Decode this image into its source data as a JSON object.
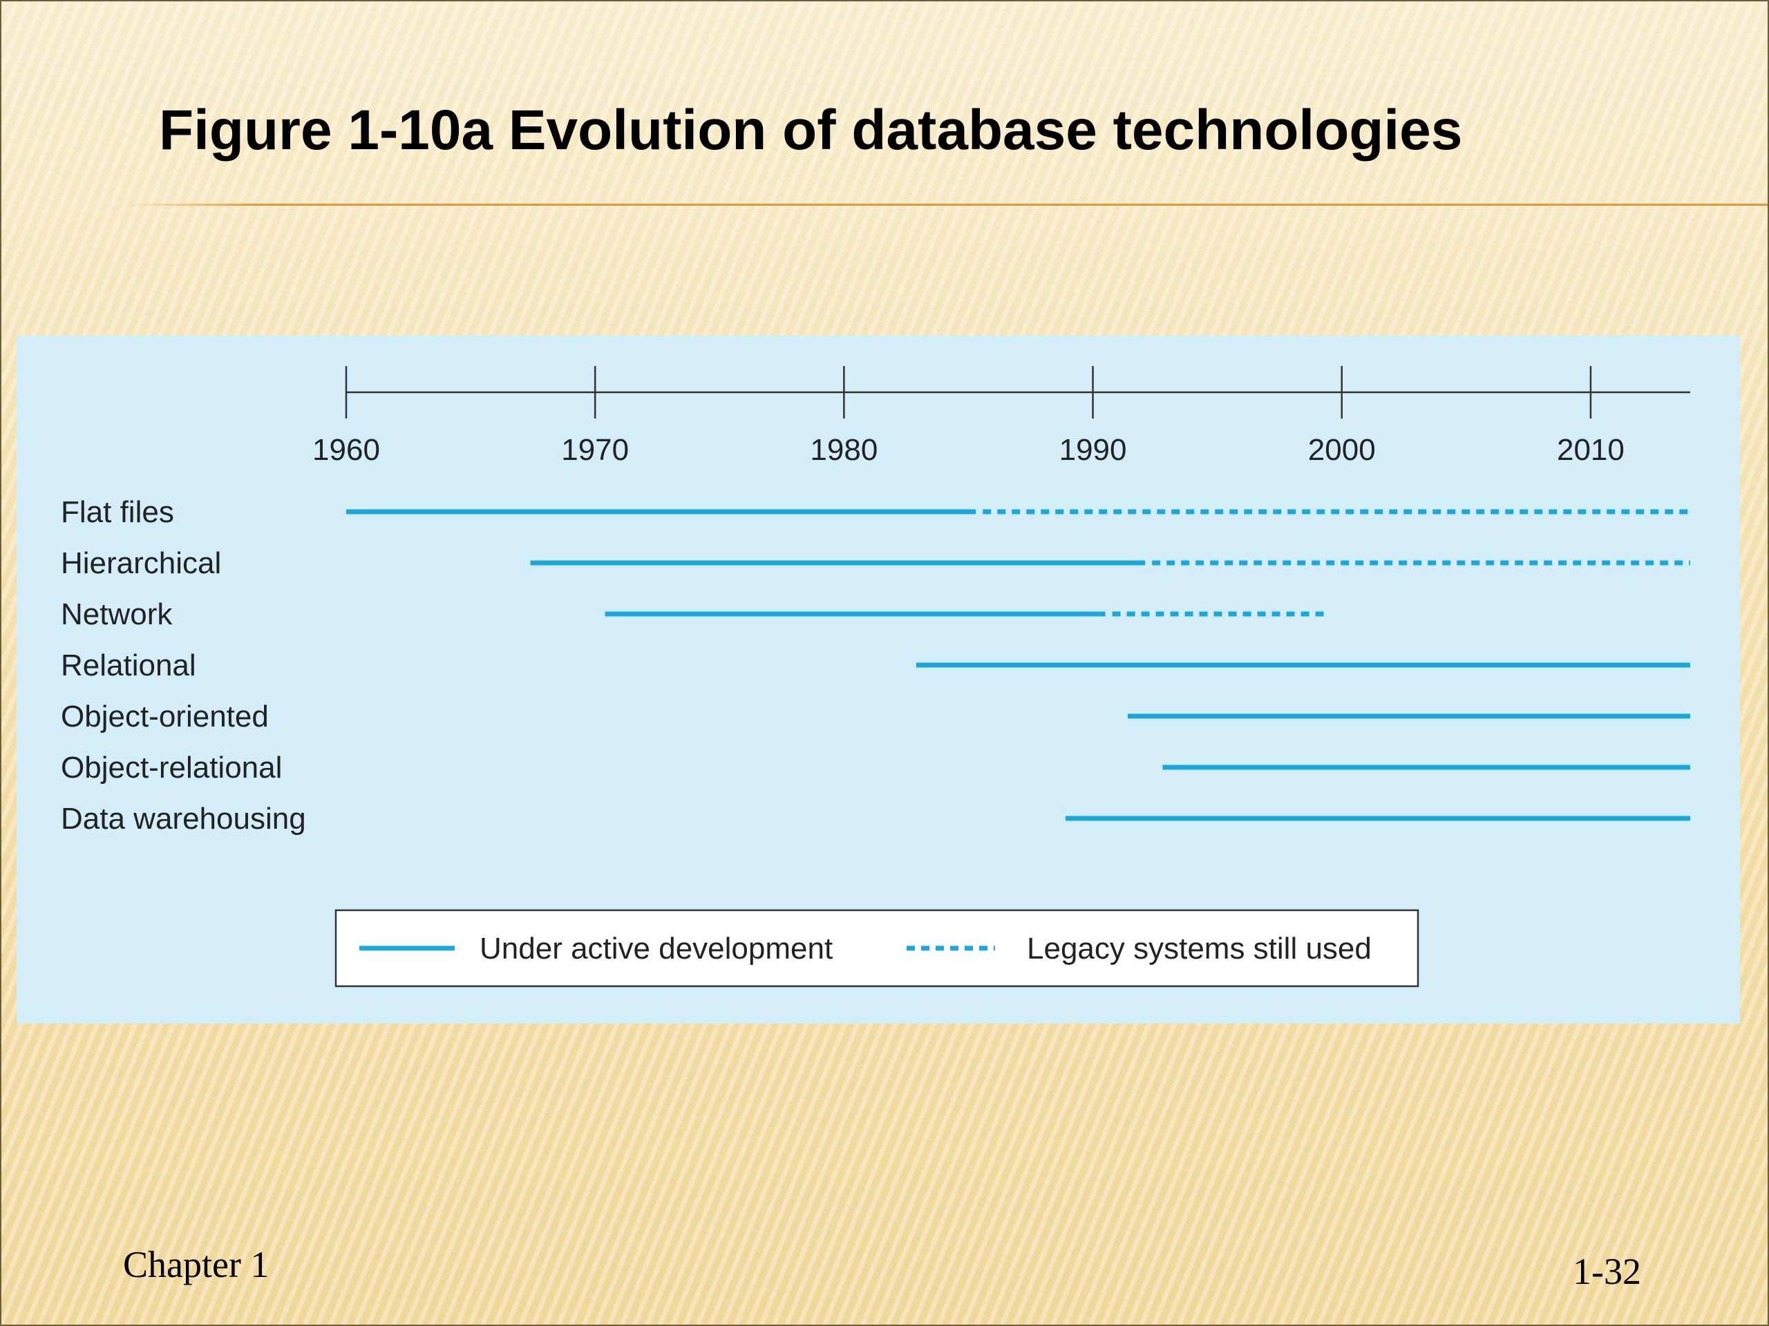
{
  "slide": {
    "title": "Figure 1-10a  Evolution of database technologies",
    "footer_left": "Chapter 1",
    "footer_right": "1-32"
  },
  "colors": {
    "line": "#1aa7dc",
    "panel": "#d3eef9",
    "axis": "#333333"
  },
  "chart_data": {
    "type": "timeline",
    "xlim": [
      1960,
      2014
    ],
    "x_ticks": [
      1960,
      1970,
      1980,
      1990,
      2000,
      2010
    ],
    "rows": [
      {
        "label": "Flat files",
        "active": [
          1960,
          1985.3
        ],
        "legacy": [
          1985.3,
          2014
        ]
      },
      {
        "label": "Hierarchical",
        "active": [
          1967.4,
          1992.1
        ],
        "legacy": [
          1992.1,
          2014
        ]
      },
      {
        "label": "Network",
        "active": [
          1970.4,
          1990.5
        ],
        "legacy": [
          1990.5,
          1999.5
        ]
      },
      {
        "label": "Relational",
        "active": [
          1982.9,
          2014
        ],
        "legacy": null
      },
      {
        "label": "Object-oriented",
        "active": [
          1991.4,
          2014
        ],
        "legacy": null
      },
      {
        "label": "Object-relational",
        "active": [
          1992.8,
          2014
        ],
        "legacy": null
      },
      {
        "label": "Data warehousing",
        "active": [
          1988.9,
          2014
        ],
        "legacy": null
      }
    ],
    "legend": {
      "active": "Under active development",
      "legacy": "Legacy systems still used"
    }
  }
}
